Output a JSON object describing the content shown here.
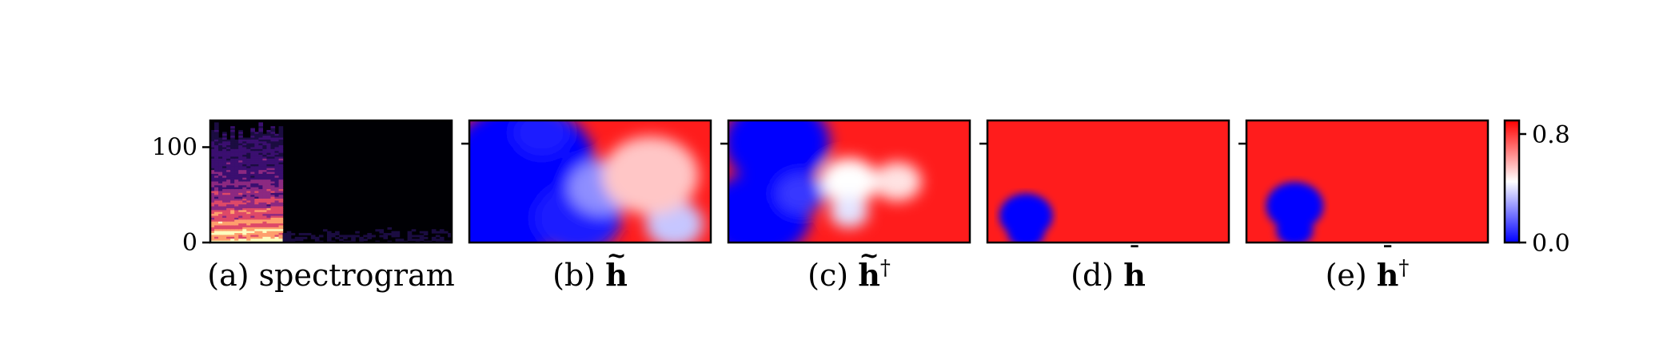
{
  "chart_data": {
    "type": "heatmap",
    "panels": [
      {
        "id": "a",
        "caption_prefix": "(a)",
        "caption_text": "spectrogram",
        "caption_accent": "",
        "caption_dagger": "",
        "colormap": "magma",
        "y_ticks": [
          {
            "value": 0,
            "label": "0"
          },
          {
            "value": 100,
            "label": "100"
          }
        ],
        "y_range": [
          0,
          128
        ]
      },
      {
        "id": "b",
        "caption_prefix": "(b)",
        "caption_text": "h",
        "caption_accent": "~",
        "caption_dagger": "",
        "colormap": "bwr",
        "blobs": [
          {
            "cx": 0.22,
            "cy": 0.35,
            "r": 0.3,
            "v": 0.0
          },
          {
            "cx": 0.13,
            "cy": 0.78,
            "r": 0.25,
            "v": 0.0
          },
          {
            "cx": 0.45,
            "cy": 0.8,
            "r": 0.18,
            "v": 0.05
          },
          {
            "cx": 0.3,
            "cy": 0.1,
            "r": 0.12,
            "v": 0.05
          },
          {
            "cx": 0.55,
            "cy": 0.55,
            "r": 0.14,
            "v": 0.25
          },
          {
            "cx": 0.85,
            "cy": 0.85,
            "r": 0.12,
            "v": 0.35
          },
          {
            "cx": 0.75,
            "cy": 0.45,
            "r": 0.2,
            "v": 0.55
          }
        ]
      },
      {
        "id": "c",
        "caption_prefix": "(c)",
        "caption_text": "h",
        "caption_accent": "~",
        "caption_dagger": "†",
        "colormap": "bwr",
        "blobs": [
          {
            "cx": 0.2,
            "cy": 0.18,
            "r": 0.22,
            "v": 0.0
          },
          {
            "cx": 0.12,
            "cy": 0.78,
            "r": 0.22,
            "v": 0.0
          },
          {
            "cx": 0.3,
            "cy": 0.6,
            "r": 0.1,
            "v": 0.1
          },
          {
            "cx": 0.5,
            "cy": 0.5,
            "r": 0.12,
            "v": 0.45
          },
          {
            "cx": 0.5,
            "cy": 0.75,
            "r": 0.08,
            "v": 0.4
          },
          {
            "cx": 0.7,
            "cy": 0.5,
            "r": 0.1,
            "v": 0.5
          }
        ]
      },
      {
        "id": "d",
        "caption_prefix": "(d)",
        "caption_text": "h",
        "caption_accent": "¯",
        "caption_dagger": "",
        "colormap": "bwr",
        "blobs": [
          {
            "cx": 0.16,
            "cy": 0.78,
            "r": 0.13,
            "v": 0.0
          },
          {
            "cx": 0.16,
            "cy": 0.92,
            "r": 0.09,
            "v": 0.0
          }
        ]
      },
      {
        "id": "e",
        "caption_prefix": "(e)",
        "caption_text": "h",
        "caption_accent": "¯",
        "caption_dagger": "†",
        "colormap": "bwr",
        "blobs": [
          {
            "cx": 0.2,
            "cy": 0.7,
            "r": 0.14,
            "v": 0.0
          },
          {
            "cx": 0.2,
            "cy": 0.9,
            "r": 0.09,
            "v": 0.0
          }
        ]
      }
    ],
    "background_value": 0.85,
    "colorbar": {
      "colormap": "bwr",
      "range": [
        0.0,
        0.9
      ],
      "ticks": [
        {
          "value": 0.0,
          "label": "0.0"
        },
        {
          "value": 0.8,
          "label": "0.8"
        }
      ]
    }
  }
}
